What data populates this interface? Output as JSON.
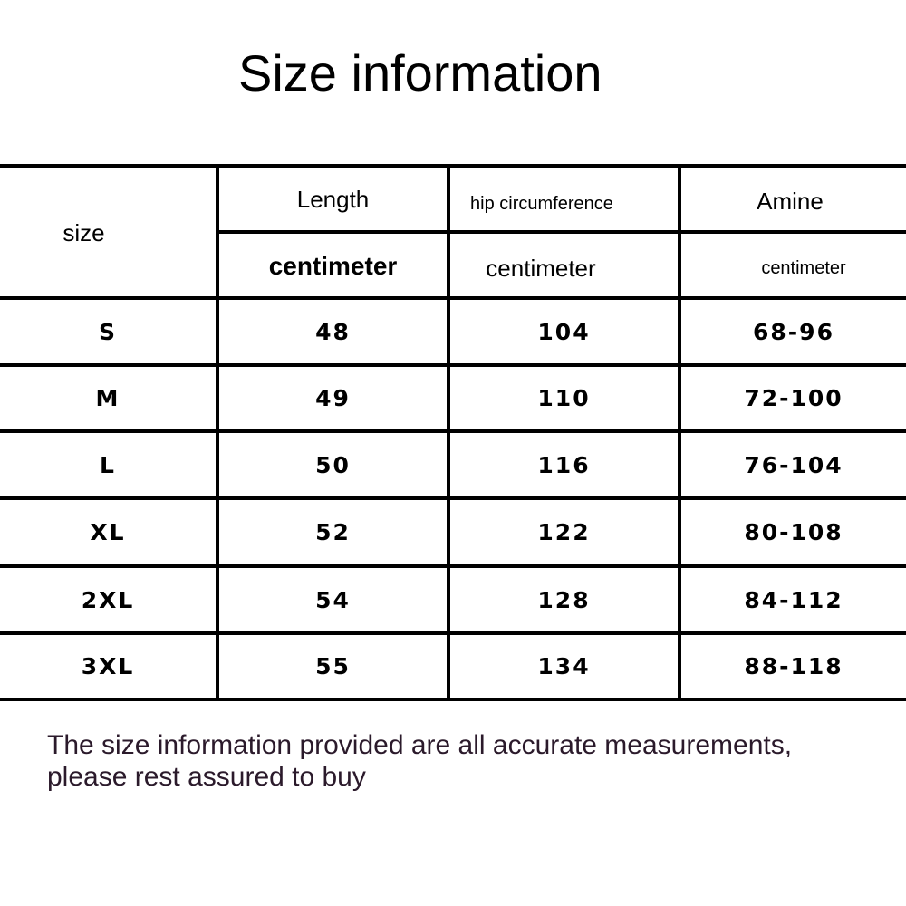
{
  "title": "Size information",
  "table": {
    "size_label": "size",
    "columns": [
      {
        "name": "Length",
        "unit": "centimeter"
      },
      {
        "name": "hip circumference",
        "unit": "centimeter"
      },
      {
        "name": "Amine",
        "unit": "centimeter"
      }
    ],
    "rows": [
      {
        "size": "S",
        "length": "48",
        "hip": "104",
        "amine": "68-96"
      },
      {
        "size": "M",
        "length": "49",
        "hip": "110",
        "amine": "72-100"
      },
      {
        "size": "L",
        "length": "50",
        "hip": "116",
        "amine": "76-104"
      },
      {
        "size": "XL",
        "length": "52",
        "hip": "122",
        "amine": "80-108"
      },
      {
        "size": "2XL",
        "length": "54",
        "hip": "128",
        "amine": "84-112"
      },
      {
        "size": "3XL",
        "length": "55",
        "hip": "134",
        "amine": "88-118"
      }
    ]
  },
  "footer": {
    "line1": "The size information provided are all accurate measurements,",
    "line2": "please rest assured to buy"
  }
}
